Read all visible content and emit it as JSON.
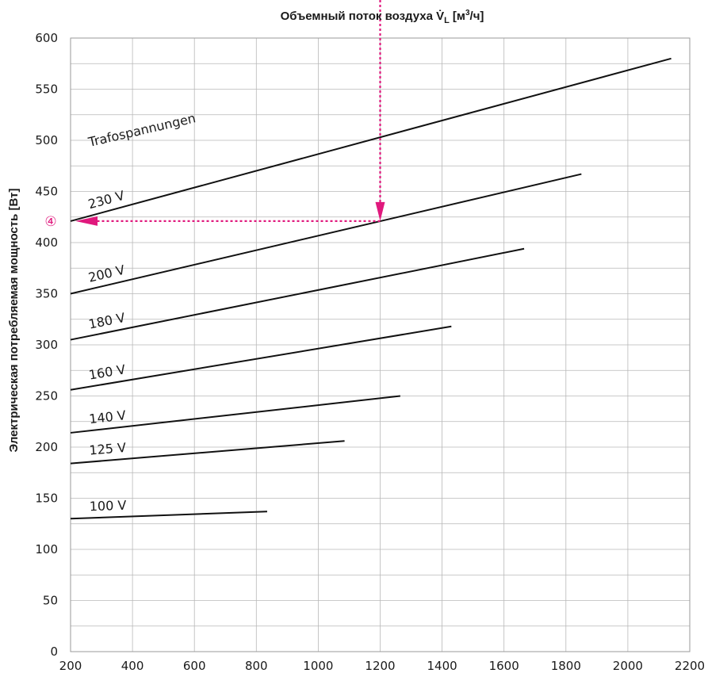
{
  "chart_data": {
    "type": "line",
    "title": "Объемный поток воздуха V̇L [м³/ч]",
    "title_main": "Объемный поток воздуха V̇",
    "title_sub": "L",
    "title_unit_pre": "[м",
    "title_unit_sup": "3",
    "title_unit_post": "/ч]",
    "ylabel": "Электрическая потребляемая мощность [Вт]",
    "xlim": [
      200,
      2200
    ],
    "ylim": [
      0,
      600
    ],
    "x_ticks": [
      200,
      400,
      600,
      800,
      1000,
      1200,
      1400,
      1600,
      1800,
      2000,
      2200
    ],
    "y_ticks": [
      0,
      50,
      100,
      150,
      200,
      250,
      300,
      350,
      400,
      450,
      500,
      550,
      600
    ],
    "grid": true,
    "legend_heading": "Trafospannungen",
    "series": [
      {
        "name": "230 V",
        "x": [
          200,
          2140
        ],
        "y": [
          421,
          580
        ]
      },
      {
        "name": "200 V",
        "x": [
          200,
          1850
        ],
        "y": [
          350,
          467
        ]
      },
      {
        "name": "180 V",
        "x": [
          200,
          1665
        ],
        "y": [
          305,
          394
        ]
      },
      {
        "name": "160 V",
        "x": [
          200,
          1430
        ],
        "y": [
          256,
          318
        ]
      },
      {
        "name": "140 V",
        "x": [
          200,
          1265
        ],
        "y": [
          214,
          250
        ]
      },
      {
        "name": "125 V",
        "x": [
          200,
          1085
        ],
        "y": [
          184,
          206
        ]
      },
      {
        "name": "100 V",
        "x": [
          200,
          835
        ],
        "y": [
          130,
          137
        ]
      }
    ],
    "annotation": {
      "marker": "④",
      "x": 1200,
      "y": 421,
      "color": "#e0197d"
    }
  }
}
